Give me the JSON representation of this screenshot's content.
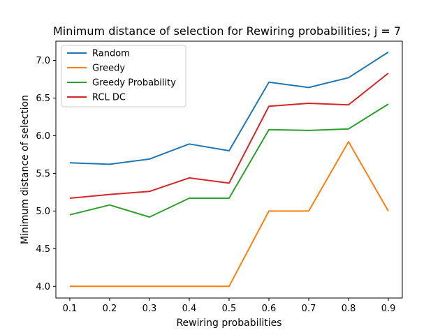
{
  "chart_data": {
    "type": "line",
    "title": "Minimum distance of selection for Rewiring probabilities; j = 7",
    "xlabel": "Rewiring probabilities",
    "ylabel": "Minimum distance of selection",
    "x": [
      0.1,
      0.2,
      0.3,
      0.4,
      0.5,
      0.6,
      0.7,
      0.8,
      0.9
    ],
    "x_ticks": [
      "0.1",
      "0.2",
      "0.3",
      "0.4",
      "0.5",
      "0.6",
      "0.7",
      "0.8",
      "0.9"
    ],
    "y_ticks": [
      "4.0",
      "4.5",
      "5.0",
      "5.5",
      "6.0",
      "6.5",
      "7.0"
    ],
    "xlim": [
      0.065,
      0.935
    ],
    "ylim": [
      3.845,
      7.255
    ],
    "grid": false,
    "legend_position": "top-left",
    "series": [
      {
        "name": "Random",
        "color": "#1f77b4",
        "values": [
          5.64,
          5.62,
          5.69,
          5.89,
          5.8,
          6.71,
          6.64,
          6.77,
          7.11
        ]
      },
      {
        "name": "Greedy",
        "color": "#ff7f0e",
        "values": [
          4.0,
          4.0,
          4.0,
          4.0,
          4.0,
          5.0,
          5.0,
          5.92,
          5.0
        ]
      },
      {
        "name": "Greedy Probability",
        "color": "#2ca02c",
        "values": [
          4.95,
          5.08,
          4.92,
          5.17,
          5.17,
          6.08,
          6.07,
          6.09,
          6.42
        ]
      },
      {
        "name": "RCL DC",
        "color": "#d62728",
        "values": [
          5.17,
          5.22,
          5.26,
          5.44,
          5.37,
          6.39,
          6.43,
          6.41,
          6.83
        ]
      }
    ]
  }
}
